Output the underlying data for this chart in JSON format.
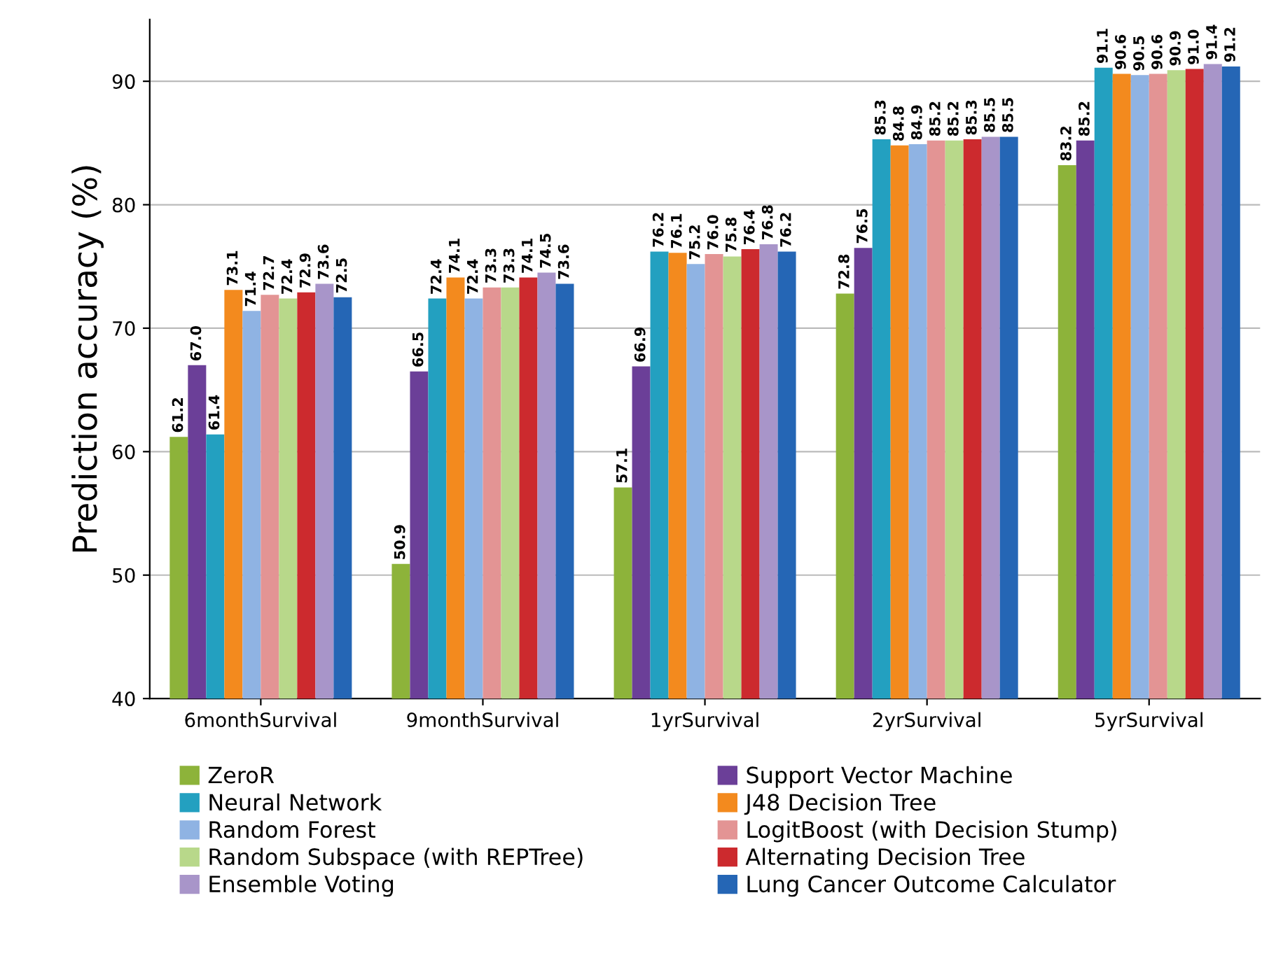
{
  "chart_data": {
    "type": "bar",
    "ylabel": "Prediction accuracy (%)",
    "categories": [
      "6monthSurvival",
      "9monthSurvival",
      "1yrSurvival",
      "2yrSurvival",
      "5yrSurvival"
    ],
    "series": [
      {
        "name": "ZeroR",
        "color": "#8db33a",
        "values": [
          61.2,
          50.9,
          57.1,
          72.8,
          83.2
        ],
        "value_labels": [
          "61.2",
          "50.9",
          "57.1",
          "72.8",
          "83.2"
        ]
      },
      {
        "name": "Support Vector Machine",
        "color": "#6b3f98",
        "values": [
          67.0,
          66.5,
          66.9,
          76.5,
          85.2
        ],
        "value_labels": [
          "67.0",
          "66.5",
          "66.9",
          "76.5",
          "85.2"
        ]
      },
      {
        "name": "Neural Network",
        "color": "#23a0c0",
        "values": [
          61.4,
          72.4,
          76.2,
          85.3,
          91.1
        ],
        "value_labels": [
          "61.4",
          "72.4",
          "76.2",
          "85.3",
          "91.1"
        ]
      },
      {
        "name": "J48 Decision Tree",
        "color": "#f38a1e",
        "values": [
          73.1,
          74.1,
          76.1,
          84.8,
          90.6
        ],
        "value_labels": [
          "73.1",
          "74.1",
          "76.1",
          "84.8",
          "90.6"
        ]
      },
      {
        "name": "Random Forest",
        "color": "#8fb3e3",
        "values": [
          71.4,
          72.4,
          75.2,
          84.9,
          90.5
        ],
        "value_labels": [
          "71.4",
          "72.4",
          "75.2",
          "84.9",
          "90.5"
        ]
      },
      {
        "name": "LogitBoost (with Decision Stump)",
        "color": "#e39494",
        "values": [
          72.7,
          73.3,
          76.0,
          85.2,
          90.6
        ],
        "value_labels": [
          "72.7",
          "73.3",
          "76.0",
          "85.2",
          "90.6"
        ]
      },
      {
        "name": "Random Subspace (with REPTree)",
        "color": "#b8d88a",
        "values": [
          72.4,
          73.3,
          75.8,
          85.2,
          90.9
        ],
        "value_labels": [
          "72.4",
          "73.3",
          "75.8",
          "85.2",
          "90.9"
        ]
      },
      {
        "name": "Alternating Decision Tree",
        "color": "#cc2a2e",
        "values": [
          72.9,
          74.1,
          76.4,
          85.3,
          91.0
        ],
        "value_labels": [
          "72.9",
          "74.1",
          "76.4",
          "85.3",
          "91.0"
        ]
      },
      {
        "name": "Ensemble Voting",
        "color": "#a895c9",
        "values": [
          73.6,
          74.5,
          76.8,
          85.5,
          91.4
        ],
        "value_labels": [
          "73.6",
          "74.5",
          "76.8",
          "85.5",
          "91.4"
        ]
      },
      {
        "name": "Lung Cancer Outcome Calculator",
        "color": "#2566b5",
        "values": [
          72.5,
          73.6,
          76.2,
          85.5,
          91.2
        ],
        "value_labels": [
          "72.5",
          "73.6",
          "76.2",
          "85.5",
          "91.2"
        ]
      }
    ],
    "ylim": [
      40,
      95
    ],
    "yticks": [
      40,
      50,
      60,
      70,
      80,
      90
    ],
    "grid": "y",
    "legend": "bottom"
  }
}
